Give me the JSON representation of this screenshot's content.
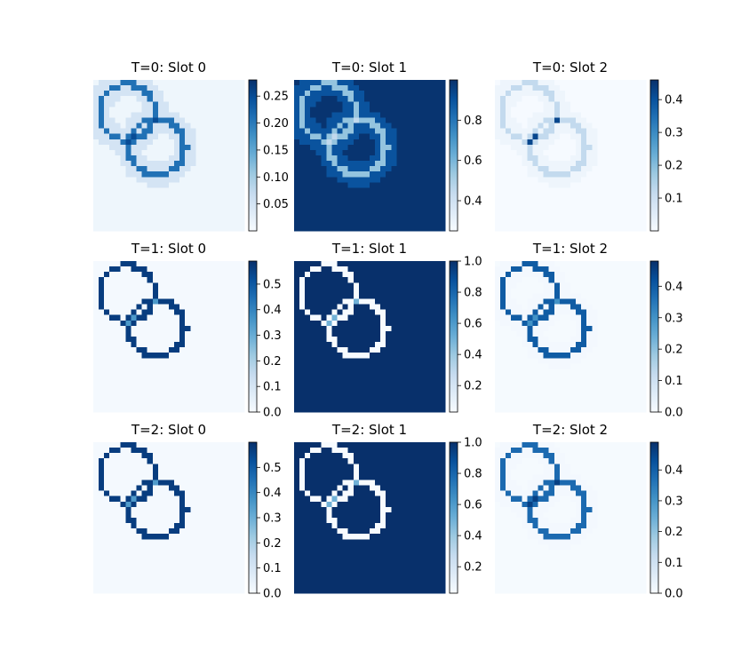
{
  "colormap": {
    "name": "Blues",
    "stops": [
      "#f7fbff",
      "#deebf7",
      "#c6dbef",
      "#9ecae1",
      "#6baed6",
      "#4292c6",
      "#2171b5",
      "#08519c",
      "#08306b"
    ]
  },
  "chart_data": [
    {
      "type": "heatmap",
      "title": "T=0: Slot 0",
      "timestep": 0,
      "slot": 0,
      "role": "object",
      "vmin": 0.0,
      "vmax": 0.28,
      "ring_value": 0.21,
      "background": 0.012,
      "halo": 0.05,
      "overlap_value": 0.25,
      "colorbar_ticks": [
        "0.05",
        "0.10",
        "0.15",
        "0.20",
        "0.25"
      ],
      "colorbar_tick_values": [
        0.05,
        0.1,
        0.15,
        0.2,
        0.25
      ]
    },
    {
      "type": "heatmap",
      "title": "T=0: Slot 1",
      "timestep": 0,
      "slot": 1,
      "role": "background",
      "vmin": 0.25,
      "vmax": 1.0,
      "ring_value": 0.55,
      "background": 0.99,
      "halo": 0.9,
      "overlap_value": 0.45,
      "colorbar_ticks": [
        "0.4",
        "0.6",
        "0.8"
      ],
      "colorbar_tick_values": [
        0.4,
        0.6,
        0.8
      ]
    },
    {
      "type": "heatmap",
      "title": "T=0: Slot 2",
      "timestep": 0,
      "slot": 2,
      "role": "object",
      "vmin": 0.0,
      "vmax": 0.46,
      "ring_value": 0.12,
      "background": 0.003,
      "halo": 0.02,
      "overlap_value": 0.42,
      "colorbar_ticks": [
        "0.1",
        "0.2",
        "0.3",
        "0.4"
      ],
      "colorbar_tick_values": [
        0.1,
        0.2,
        0.3,
        0.4
      ]
    },
    {
      "type": "heatmap",
      "title": "T=1: Slot 0",
      "timestep": 1,
      "slot": 0,
      "role": "object",
      "vmin": 0.0,
      "vmax": 0.59,
      "ring_value": 0.56,
      "background": 0.008,
      "halo": 0.01,
      "overlap_value": 0.35,
      "colorbar_ticks": [
        "0.0",
        "0.1",
        "0.2",
        "0.3",
        "0.4",
        "0.5"
      ],
      "colorbar_tick_values": [
        0.0,
        0.1,
        0.2,
        0.3,
        0.4,
        0.5
      ]
    },
    {
      "type": "heatmap",
      "title": "T=1: Slot 1",
      "timestep": 1,
      "slot": 1,
      "role": "background",
      "vmin": 0.03,
      "vmax": 1.0,
      "ring_value": 0.03,
      "background": 1.0,
      "halo": 1.0,
      "overlap_value": 0.5,
      "colorbar_ticks": [
        "0.2",
        "0.4",
        "0.6",
        "0.8",
        "1.0"
      ],
      "colorbar_tick_values": [
        0.2,
        0.4,
        0.6,
        0.8,
        1.0
      ]
    },
    {
      "type": "heatmap",
      "title": "T=1: Slot 2",
      "timestep": 1,
      "slot": 2,
      "role": "object",
      "vmin": 0.0,
      "vmax": 0.48,
      "ring_value": 0.4,
      "background": 0.004,
      "halo": 0.01,
      "overlap_value": 0.3,
      "colorbar_ticks": [
        "0.0",
        "0.1",
        "0.2",
        "0.3",
        "0.4"
      ],
      "colorbar_tick_values": [
        0.0,
        0.1,
        0.2,
        0.3,
        0.4
      ]
    },
    {
      "type": "heatmap",
      "title": "T=2: Slot 0",
      "timestep": 2,
      "slot": 0,
      "role": "object",
      "vmin": 0.0,
      "vmax": 0.6,
      "ring_value": 0.57,
      "background": 0.008,
      "halo": 0.01,
      "overlap_value": 0.35,
      "colorbar_ticks": [
        "0.0",
        "0.1",
        "0.2",
        "0.3",
        "0.4",
        "0.5"
      ],
      "colorbar_tick_values": [
        0.0,
        0.1,
        0.2,
        0.3,
        0.4,
        0.5
      ]
    },
    {
      "type": "heatmap",
      "title": "T=2: Slot 1",
      "timestep": 2,
      "slot": 1,
      "role": "background",
      "vmin": 0.03,
      "vmax": 1.0,
      "ring_value": 0.03,
      "background": 1.0,
      "halo": 1.0,
      "overlap_value": 0.5,
      "colorbar_ticks": [
        "0.2",
        "0.4",
        "0.6",
        "0.8",
        "1.0"
      ],
      "colorbar_tick_values": [
        0.2,
        0.4,
        0.6,
        0.8,
        1.0
      ]
    },
    {
      "type": "heatmap",
      "title": "T=2: Slot 2",
      "timestep": 2,
      "slot": 2,
      "role": "object",
      "vmin": 0.0,
      "vmax": 0.49,
      "ring_value": 0.38,
      "background": 0.004,
      "halo": 0.01,
      "overlap_value": 0.46,
      "colorbar_ticks": [
        "0.0",
        "0.1",
        "0.2",
        "0.3",
        "0.4"
      ],
      "colorbar_tick_values": [
        0.0,
        0.1,
        0.2,
        0.3,
        0.4
      ]
    }
  ]
}
